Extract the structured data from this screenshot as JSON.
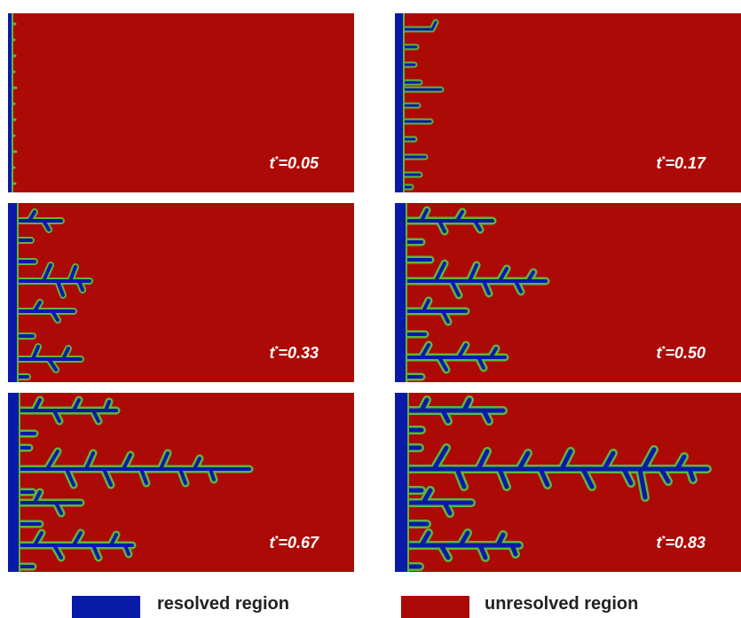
{
  "colors": {
    "resolved": "#0a1aa8",
    "unresolved": "#ac0a06",
    "interface": "#5fb53a"
  },
  "panels": [
    {
      "label": "t*=0.05",
      "t_prefix": "t",
      "t_value": "=0.05"
    },
    {
      "label": "t*=0.17",
      "t_prefix": "t",
      "t_value": "=0.17"
    },
    {
      "label": "t*=0.33",
      "t_prefix": "t",
      "t_value": "=0.33"
    },
    {
      "label": "t*=0.50",
      "t_prefix": "t",
      "t_value": "=0.50"
    },
    {
      "label": "t*=0.67",
      "t_prefix": "t",
      "t_value": "=0.67"
    },
    {
      "label": "t*=0.83",
      "t_prefix": "t",
      "t_value": "=0.83"
    }
  ],
  "legend": [
    {
      "label": "resolved region",
      "color": "#0a1aa8"
    },
    {
      "label": "unresolved region",
      "color": "#ac0a06"
    }
  ]
}
